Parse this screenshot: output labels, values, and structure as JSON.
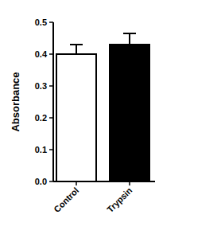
{
  "chart_data": {
    "type": "bar",
    "y_label": "Absorbance",
    "categories": [
      "Control",
      "Trypsin"
    ],
    "values": [
      0.4,
      0.43
    ],
    "errors": [
      0.03,
      0.035
    ],
    "colors": [
      "#ffffff",
      "#000000"
    ],
    "ylim": [
      0,
      0.5
    ],
    "yticks": [
      {
        "value": 0,
        "label": "0.0"
      },
      0.1,
      0.2,
      0.3,
      0.4,
      0.5
    ],
    "grid": false
  }
}
